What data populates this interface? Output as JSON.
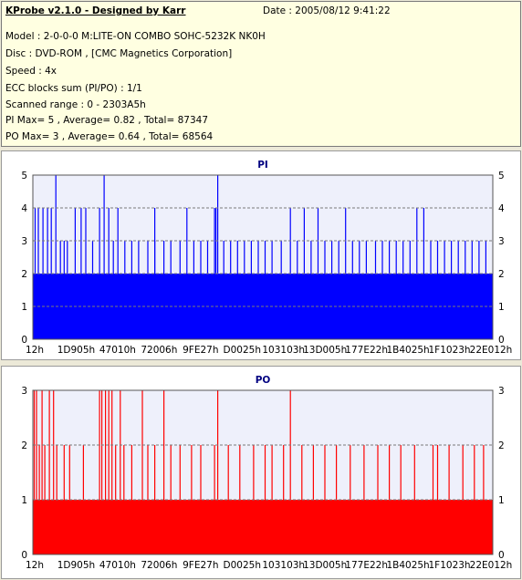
{
  "info": {
    "title": "KProbe v2.1.0 - Designed by Karr",
    "date": "Date : 2005/08/12 9:41:22",
    "model": "Model : 2-0-0-0 M:LITE-ON COMBO SOHC-5232K NK0H",
    "disc": "Disc : DVD-ROM ,  [CMC Magnetics Corporation]",
    "speed": "Speed : 4x",
    "ecc": "ECC blocks sum (PI/PO) : 1/1",
    "range": "Scanned range : 0 - 2303A5h",
    "pi_stats": "PI Max= 5 , Average= 0.82 , Total= 87347",
    "po_stats": "PO Max= 3 , Average= 0.64 , Total= 68564"
  },
  "colors": {
    "pi": "#0000ff",
    "po": "#ff0000",
    "plot_bg": "#eef0fb",
    "grid": "#7a7a7a",
    "title": "#000080"
  },
  "chart_data": [
    {
      "type": "bar",
      "title": "PI",
      "color": "#0000ff",
      "ylim": [
        0,
        5
      ],
      "yticks": [
        0,
        1,
        2,
        3,
        4,
        5
      ],
      "xlabels": [
        "12h",
        "1D905h",
        "47010h",
        "72006h",
        "9FE27h",
        "D0025h",
        "103103h",
        "13D005h",
        "177E22h",
        "1B4025h",
        "1F1023h",
        "22E012h"
      ],
      "grid": "dashed horizontal",
      "baseline": 2,
      "spikes": [
        {
          "x": 0.005,
          "y": 4
        },
        {
          "x": 0.012,
          "y": 4
        },
        {
          "x": 0.022,
          "y": 4
        },
        {
          "x": 0.032,
          "y": 4
        },
        {
          "x": 0.04,
          "y": 4
        },
        {
          "x": 0.05,
          "y": 5
        },
        {
          "x": 0.06,
          "y": 3
        },
        {
          "x": 0.068,
          "y": 3
        },
        {
          "x": 0.075,
          "y": 3
        },
        {
          "x": 0.092,
          "y": 4
        },
        {
          "x": 0.105,
          "y": 4
        },
        {
          "x": 0.115,
          "y": 4
        },
        {
          "x": 0.13,
          "y": 3
        },
        {
          "x": 0.145,
          "y": 4
        },
        {
          "x": 0.155,
          "y": 5
        },
        {
          "x": 0.165,
          "y": 4
        },
        {
          "x": 0.175,
          "y": 3
        },
        {
          "x": 0.185,
          "y": 4
        },
        {
          "x": 0.2,
          "y": 3
        },
        {
          "x": 0.215,
          "y": 3
        },
        {
          "x": 0.23,
          "y": 3
        },
        {
          "x": 0.25,
          "y": 3
        },
        {
          "x": 0.265,
          "y": 3
        },
        {
          "x": 0.265,
          "y": 4
        },
        {
          "x": 0.285,
          "y": 3
        },
        {
          "x": 0.3,
          "y": 3
        },
        {
          "x": 0.32,
          "y": 3
        },
        {
          "x": 0.335,
          "y": 4
        },
        {
          "x": 0.35,
          "y": 3
        },
        {
          "x": 0.365,
          "y": 3
        },
        {
          "x": 0.38,
          "y": 3
        },
        {
          "x": 0.395,
          "y": 4
        },
        {
          "x": 0.398,
          "y": 4
        },
        {
          "x": 0.402,
          "y": 5
        },
        {
          "x": 0.415,
          "y": 3
        },
        {
          "x": 0.43,
          "y": 3
        },
        {
          "x": 0.445,
          "y": 3
        },
        {
          "x": 0.46,
          "y": 3
        },
        {
          "x": 0.475,
          "y": 3
        },
        {
          "x": 0.49,
          "y": 3
        },
        {
          "x": 0.505,
          "y": 3
        },
        {
          "x": 0.52,
          "y": 3
        },
        {
          "x": 0.54,
          "y": 3
        },
        {
          "x": 0.56,
          "y": 4
        },
        {
          "x": 0.575,
          "y": 3
        },
        {
          "x": 0.59,
          "y": 4
        },
        {
          "x": 0.605,
          "y": 3
        },
        {
          "x": 0.62,
          "y": 4
        },
        {
          "x": 0.635,
          "y": 3
        },
        {
          "x": 0.65,
          "y": 3
        },
        {
          "x": 0.665,
          "y": 3
        },
        {
          "x": 0.68,
          "y": 4
        },
        {
          "x": 0.695,
          "y": 3
        },
        {
          "x": 0.71,
          "y": 3
        },
        {
          "x": 0.725,
          "y": 3
        },
        {
          "x": 0.745,
          "y": 3
        },
        {
          "x": 0.76,
          "y": 3
        },
        {
          "x": 0.775,
          "y": 3
        },
        {
          "x": 0.79,
          "y": 3
        },
        {
          "x": 0.805,
          "y": 3
        },
        {
          "x": 0.82,
          "y": 3
        },
        {
          "x": 0.835,
          "y": 4
        },
        {
          "x": 0.85,
          "y": 4
        },
        {
          "x": 0.865,
          "y": 3
        },
        {
          "x": 0.88,
          "y": 3
        },
        {
          "x": 0.895,
          "y": 3
        },
        {
          "x": 0.91,
          "y": 3
        },
        {
          "x": 0.925,
          "y": 3
        },
        {
          "x": 0.94,
          "y": 3
        },
        {
          "x": 0.955,
          "y": 3
        },
        {
          "x": 0.97,
          "y": 3
        },
        {
          "x": 0.985,
          "y": 3
        }
      ]
    },
    {
      "type": "bar",
      "title": "PO",
      "color": "#ff0000",
      "ylim": [
        0,
        3
      ],
      "yticks": [
        0,
        1,
        2,
        3
      ],
      "xlabels": [
        "12h",
        "1D905h",
        "47010h",
        "72006h",
        "9FE27h",
        "D0025h",
        "103103h",
        "13D005h",
        "177E22h",
        "1B4025h",
        "1F1023h",
        "22E012h"
      ],
      "grid": "dashed horizontal",
      "baseline": 1,
      "spikes": [
        {
          "x": 0.003,
          "y": 3
        },
        {
          "x": 0.008,
          "y": 3
        },
        {
          "x": 0.014,
          "y": 2
        },
        {
          "x": 0.02,
          "y": 3
        },
        {
          "x": 0.026,
          "y": 2
        },
        {
          "x": 0.036,
          "y": 3
        },
        {
          "x": 0.045,
          "y": 3
        },
        {
          "x": 0.052,
          "y": 2
        },
        {
          "x": 0.068,
          "y": 2
        },
        {
          "x": 0.08,
          "y": 2
        },
        {
          "x": 0.11,
          "y": 2
        },
        {
          "x": 0.145,
          "y": 3
        },
        {
          "x": 0.15,
          "y": 3
        },
        {
          "x": 0.158,
          "y": 3
        },
        {
          "x": 0.165,
          "y": 3
        },
        {
          "x": 0.172,
          "y": 3
        },
        {
          "x": 0.18,
          "y": 2
        },
        {
          "x": 0.19,
          "y": 3
        },
        {
          "x": 0.198,
          "y": 2
        },
        {
          "x": 0.215,
          "y": 2
        },
        {
          "x": 0.238,
          "y": 3
        },
        {
          "x": 0.25,
          "y": 2
        },
        {
          "x": 0.265,
          "y": 2
        },
        {
          "x": 0.285,
          "y": 3
        },
        {
          "x": 0.3,
          "y": 2
        },
        {
          "x": 0.32,
          "y": 2
        },
        {
          "x": 0.345,
          "y": 2
        },
        {
          "x": 0.365,
          "y": 2
        },
        {
          "x": 0.395,
          "y": 2
        },
        {
          "x": 0.402,
          "y": 3
        },
        {
          "x": 0.425,
          "y": 2
        },
        {
          "x": 0.45,
          "y": 2
        },
        {
          "x": 0.48,
          "y": 2
        },
        {
          "x": 0.505,
          "y": 2
        },
        {
          "x": 0.52,
          "y": 2
        },
        {
          "x": 0.545,
          "y": 2
        },
        {
          "x": 0.56,
          "y": 3
        },
        {
          "x": 0.585,
          "y": 2
        },
        {
          "x": 0.61,
          "y": 2
        },
        {
          "x": 0.635,
          "y": 2
        },
        {
          "x": 0.66,
          "y": 2
        },
        {
          "x": 0.69,
          "y": 2
        },
        {
          "x": 0.72,
          "y": 2
        },
        {
          "x": 0.75,
          "y": 2
        },
        {
          "x": 0.775,
          "y": 2
        },
        {
          "x": 0.8,
          "y": 2
        },
        {
          "x": 0.83,
          "y": 2
        },
        {
          "x": 0.87,
          "y": 2
        },
        {
          "x": 0.88,
          "y": 2
        },
        {
          "x": 0.905,
          "y": 2
        },
        {
          "x": 0.935,
          "y": 2
        },
        {
          "x": 0.96,
          "y": 2
        },
        {
          "x": 0.98,
          "y": 2
        }
      ]
    }
  ]
}
